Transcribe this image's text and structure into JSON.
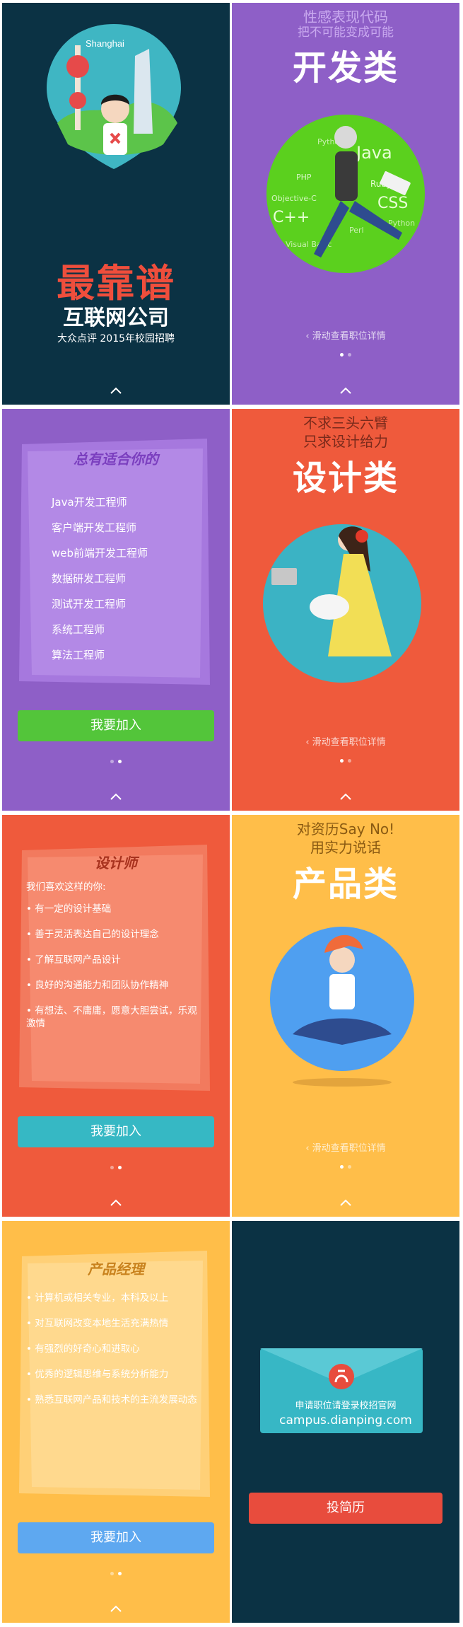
{
  "panel1": {
    "city_label": "Shanghai",
    "title_big": "最靠谱",
    "title_mid": "互联网公司",
    "subtitle": "大众点评  2015年校园招聘"
  },
  "panel2": {
    "sub1": "性感表现代码",
    "sub2": "把不可能变成可能",
    "title": "开发类",
    "langs": [
      "Python",
      "Java",
      "PHP",
      "Ruby",
      "Objective-C",
      "CSS",
      "C++",
      "Perl",
      "Python",
      "Visual Basic"
    ],
    "swipe": "滑动查看职位详情"
  },
  "panel3": {
    "heading": "总有适合你的",
    "jobs": [
      "Java开发工程师",
      "客户端开发工程师",
      "web前端开发工程师",
      "数据研发工程师",
      "测试开发工程师",
      "系统工程师",
      "算法工程师"
    ],
    "join": "我要加入"
  },
  "panel4": {
    "sub1": "不求三头六臂",
    "sub2": "只求设计给力",
    "title": "设计类",
    "swipe": "滑动查看职位详情"
  },
  "panel5": {
    "heading": "设计师",
    "intro": "我们喜欢这样的你:",
    "reqs": [
      "• 有一定的设计基础",
      "• 善于灵活表达自己的设计理念",
      "• 了解互联网产品设计",
      "• 良好的沟通能力和团队协作精神",
      "• 有想法、不庸庸，愿意大胆尝试，乐观激情"
    ],
    "join": "我要加入"
  },
  "panel6": {
    "sub1": "对资历Say No!",
    "sub2": "用实力说话",
    "title": "产品类",
    "swipe": "滑动查看职位详情"
  },
  "panel7": {
    "heading": "产品经理",
    "reqs": [
      "• 计算机或相关专业，本科及以上",
      "• 对互联网改变本地生活充满热情",
      "• 有强烈的好奇心和进取心",
      "• 优秀的逻辑思维与系统分析能力",
      "• 熟悉互联网产品和技术的主流发展动态"
    ],
    "join": "我要加入"
  },
  "panel8": {
    "apply_line": "申请职位请登录校招官网",
    "url": "campus.dianping.com",
    "resume": "投简历"
  },
  "colors": {
    "navy": "#0b3244",
    "purple": "#8e5fc7",
    "red": "#ef5a3c",
    "yellow": "#ffbe49",
    "green_button": "#53c53a",
    "teal_button": "#36b8c4",
    "blue_button": "#5ea8f0",
    "resume_button": "#e84c3d"
  }
}
